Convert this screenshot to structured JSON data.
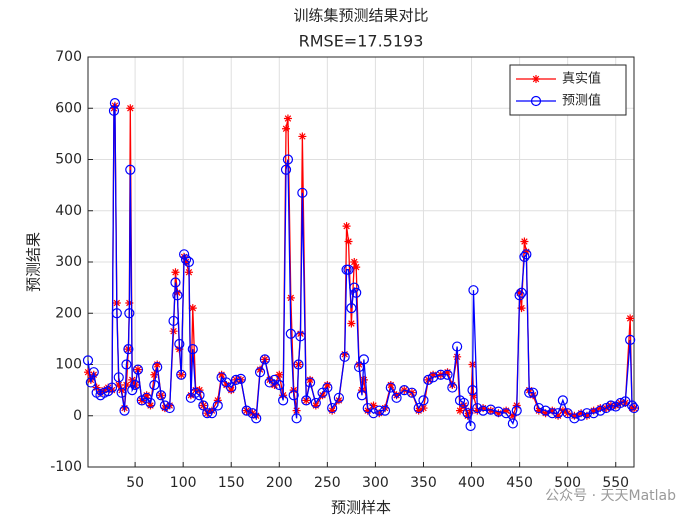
{
  "chart_data": {
    "type": "line",
    "title": "训练集预测结果对比",
    "subtitle": "RMSE=17.5193",
    "xlabel": "预测样本",
    "ylabel": "预测结果",
    "annotation": "公众号 · 天天Matlab",
    "xlim": [
      1,
      569
    ],
    "xticks": [
      50,
      100,
      150,
      200,
      250,
      300,
      350,
      400,
      450,
      500,
      550
    ],
    "ylim": [
      -100,
      700
    ],
    "yticks": [
      -100,
      0,
      100,
      200,
      300,
      400,
      500,
      600,
      700
    ],
    "grid": true,
    "legend": "upper right",
    "x": [
      1,
      4,
      7,
      10,
      14,
      18,
      22,
      26,
      28,
      29,
      31,
      33,
      36,
      39,
      41,
      43,
      44,
      45,
      47,
      50,
      53,
      57,
      62,
      66,
      70,
      73,
      77,
      81,
      86,
      90,
      92,
      94,
      96,
      98,
      101,
      103,
      106,
      108,
      110,
      113,
      117,
      121,
      125,
      130,
      136,
      140,
      145,
      150,
      155,
      160,
      166,
      172,
      176,
      180,
      185,
      190,
      195,
      200,
      204,
      207,
      209,
      212,
      215,
      218,
      220,
      222,
      224,
      228,
      232,
      238,
      245,
      250,
      255,
      262,
      268,
      270,
      272,
      275,
      278,
      280,
      283,
      286,
      288,
      292,
      298,
      304,
      310,
      316,
      322,
      330,
      338,
      345,
      350,
      355,
      360,
      368,
      375,
      380,
      385,
      388,
      392,
      396,
      399,
      401,
      402,
      406,
      412,
      420,
      428,
      436,
      443,
      447,
      450,
      452,
      455,
      457,
      460,
      464,
      470,
      477,
      484,
      490,
      495,
      500,
      507,
      514,
      520,
      527,
      534,
      540,
      545,
      550,
      555,
      560,
      565,
      567,
      569
    ],
    "series": [
      {
        "name": "真实值",
        "color": "#ff0000",
        "marker": "star",
        "values": [
          85,
          70,
          80,
          55,
          45,
          50,
          55,
          50,
          600,
          605,
          220,
          60,
          50,
          15,
          60,
          130,
          220,
          600,
          70,
          60,
          90,
          30,
          40,
          20,
          80,
          100,
          40,
          15,
          20,
          165,
          280,
          240,
          130,
          80,
          310,
          300,
          280,
          40,
          210,
          50,
          50,
          20,
          5,
          10,
          30,
          80,
          60,
          50,
          70,
          70,
          10,
          5,
          0,
          90,
          110,
          70,
          60,
          80,
          40,
          560,
          580,
          230,
          50,
          10,
          100,
          160,
          545,
          30,
          70,
          20,
          40,
          60,
          10,
          30,
          120,
          370,
          340,
          180,
          300,
          290,
          100,
          50,
          70,
          10,
          20,
          5,
          15,
          60,
          40,
          50,
          45,
          10,
          15,
          70,
          80,
          80,
          85,
          60,
          115,
          10,
          20,
          0,
          10,
          100,
          40,
          10,
          15,
          10,
          5,
          10,
          0,
          20,
          240,
          210,
          340,
          320,
          50,
          40,
          10,
          5,
          10,
          0,
          10,
          5,
          0,
          5,
          0,
          10,
          15,
          15,
          20,
          20,
          25,
          25,
          190,
          15,
          15
        ]
      },
      {
        "name": "预测值",
        "color": "#0000ff",
        "marker": "circle",
        "values": [
          108,
          65,
          85,
          45,
          40,
          45,
          48,
          55,
          595,
          610,
          200,
          75,
          45,
          10,
          100,
          130,
          200,
          480,
          50,
          60,
          90,
          30,
          35,
          25,
          60,
          95,
          40,
          20,
          15,
          185,
          260,
          235,
          140,
          80,
          315,
          305,
          300,
          35,
          130,
          45,
          40,
          20,
          5,
          5,
          20,
          75,
          65,
          55,
          70,
          72,
          10,
          5,
          -5,
          85,
          110,
          65,
          70,
          60,
          30,
          480,
          500,
          160,
          40,
          -5,
          100,
          155,
          435,
          30,
          65,
          25,
          45,
          55,
          15,
          35,
          115,
          285,
          285,
          210,
          250,
          240,
          95,
          40,
          110,
          15,
          5,
          10,
          10,
          55,
          35,
          50,
          45,
          15,
          30,
          70,
          75,
          80,
          80,
          55,
          135,
          30,
          25,
          5,
          -20,
          50,
          245,
          15,
          10,
          12,
          8,
          5,
          -15,
          10,
          235,
          240,
          310,
          315,
          45,
          45,
          15,
          10,
          5,
          5,
          30,
          5,
          -5,
          0,
          5,
          5,
          10,
          15,
          20,
          18,
          25,
          28,
          148,
          20,
          15
        ]
      }
    ]
  }
}
